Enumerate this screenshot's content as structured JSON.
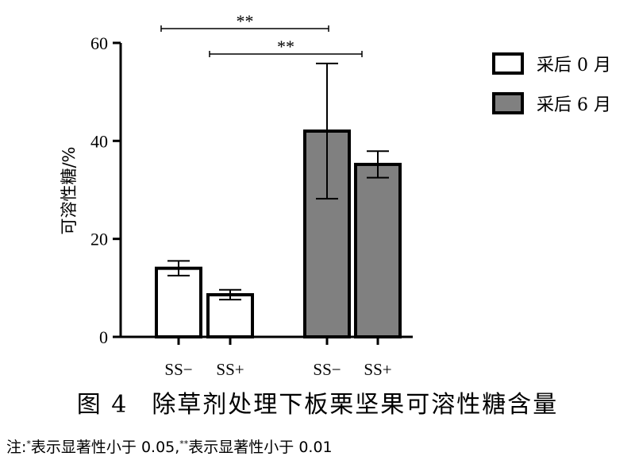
{
  "chart_data": {
    "type": "bar",
    "ylabel": "可溶性糖/%",
    "ylim": [
      0,
      60
    ],
    "yticks": [
      "0",
      "20",
      "40",
      "60"
    ],
    "groups": [
      {
        "series_name": "采后 0 月",
        "color": "#ffffff",
        "bars": [
          {
            "label": "SS−",
            "value": 14,
            "error": 1.5
          },
          {
            "label": "SS+",
            "value": 8.6,
            "error": 1.0
          }
        ]
      },
      {
        "series_name": "采后 6 月",
        "color": "#808080",
        "bars": [
          {
            "label": "SS−",
            "value": 42,
            "error": 13.8
          },
          {
            "label": "SS+",
            "value": 35.2,
            "error": 2.7
          }
        ]
      }
    ],
    "legend": [
      {
        "label": "采后 0 月",
        "color": "#ffffff"
      },
      {
        "label": "采后 6 月",
        "color": "#808080"
      }
    ],
    "legend_position": "top-right",
    "significance": [
      {
        "label": "**",
        "from": "采后 0 月 SS−",
        "to": "采后 6 月 SS−"
      },
      {
        "label": "**",
        "from": "采后 0 月 SS+",
        "to": "采后 6 月 SS+"
      }
    ]
  },
  "caption": {
    "figure_number": "图 4",
    "title": "除草剂处理下板栗坚果可溶性糖含量"
  },
  "note": {
    "prefix": "注:",
    "star1": "*",
    "text1": "表示显著性小于 0.05,",
    "star2": "**",
    "text2": "表示显著性小于 0.01"
  }
}
